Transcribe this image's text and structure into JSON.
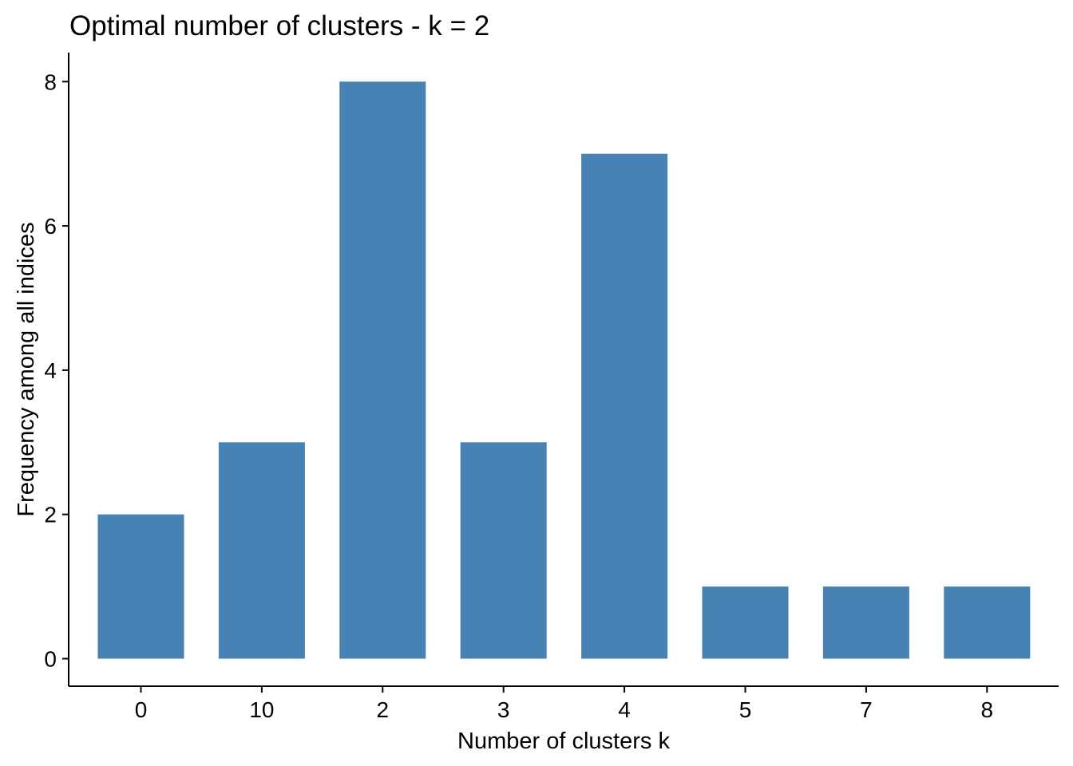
{
  "chart_data": {
    "type": "bar",
    "title": "Optimal number of clusters - k = 2",
    "xlabel": "Number of clusters k",
    "ylabel": "Frequency among all indices",
    "categories": [
      "0",
      "10",
      "2",
      "3",
      "4",
      "5",
      "7",
      "8"
    ],
    "values": [
      2,
      3,
      8,
      3,
      7,
      1,
      1,
      1
    ],
    "ylim": [
      0,
      8
    ],
    "yticks": [
      0,
      2,
      4,
      6,
      8
    ],
    "grid": false,
    "legend": "none",
    "bar_color": "#4682B4"
  }
}
